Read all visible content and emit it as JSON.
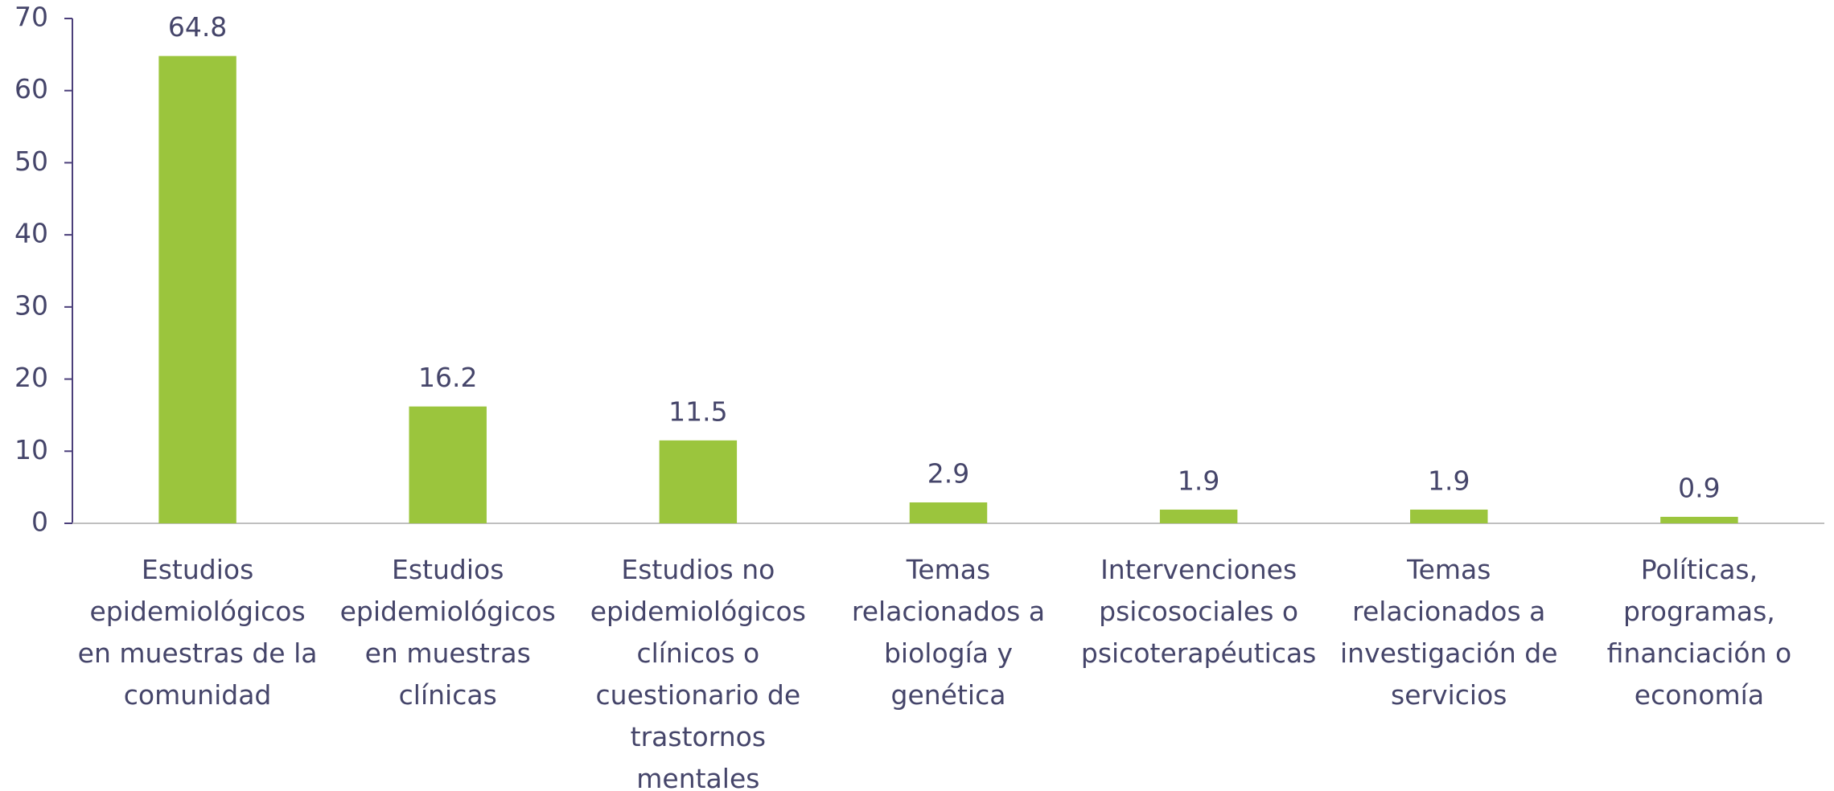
{
  "chart_data": {
    "type": "bar",
    "categories": [
      "Estudios epidemiológicos en muestras de la comunidad",
      "Estudios epidemiológicos en muestras clínicas",
      "Estudios no epidemiológicos clínicos o cuestionario de trastornos mentales",
      "Temas relacionados a biología y genética",
      "Intervenciones psicosociales o psicoterapéuticas",
      "Temas relacionados a investigación de servicios",
      "Políticas, programas, financiación o economía"
    ],
    "values": [
      64.8,
      16.2,
      11.5,
      2.9,
      1.9,
      1.9,
      0.9
    ],
    "color": "#9bc53d",
    "ylim": [
      0,
      70
    ],
    "yticks": [
      0,
      10,
      20,
      30,
      40,
      50,
      60,
      70
    ],
    "grid": false
  }
}
